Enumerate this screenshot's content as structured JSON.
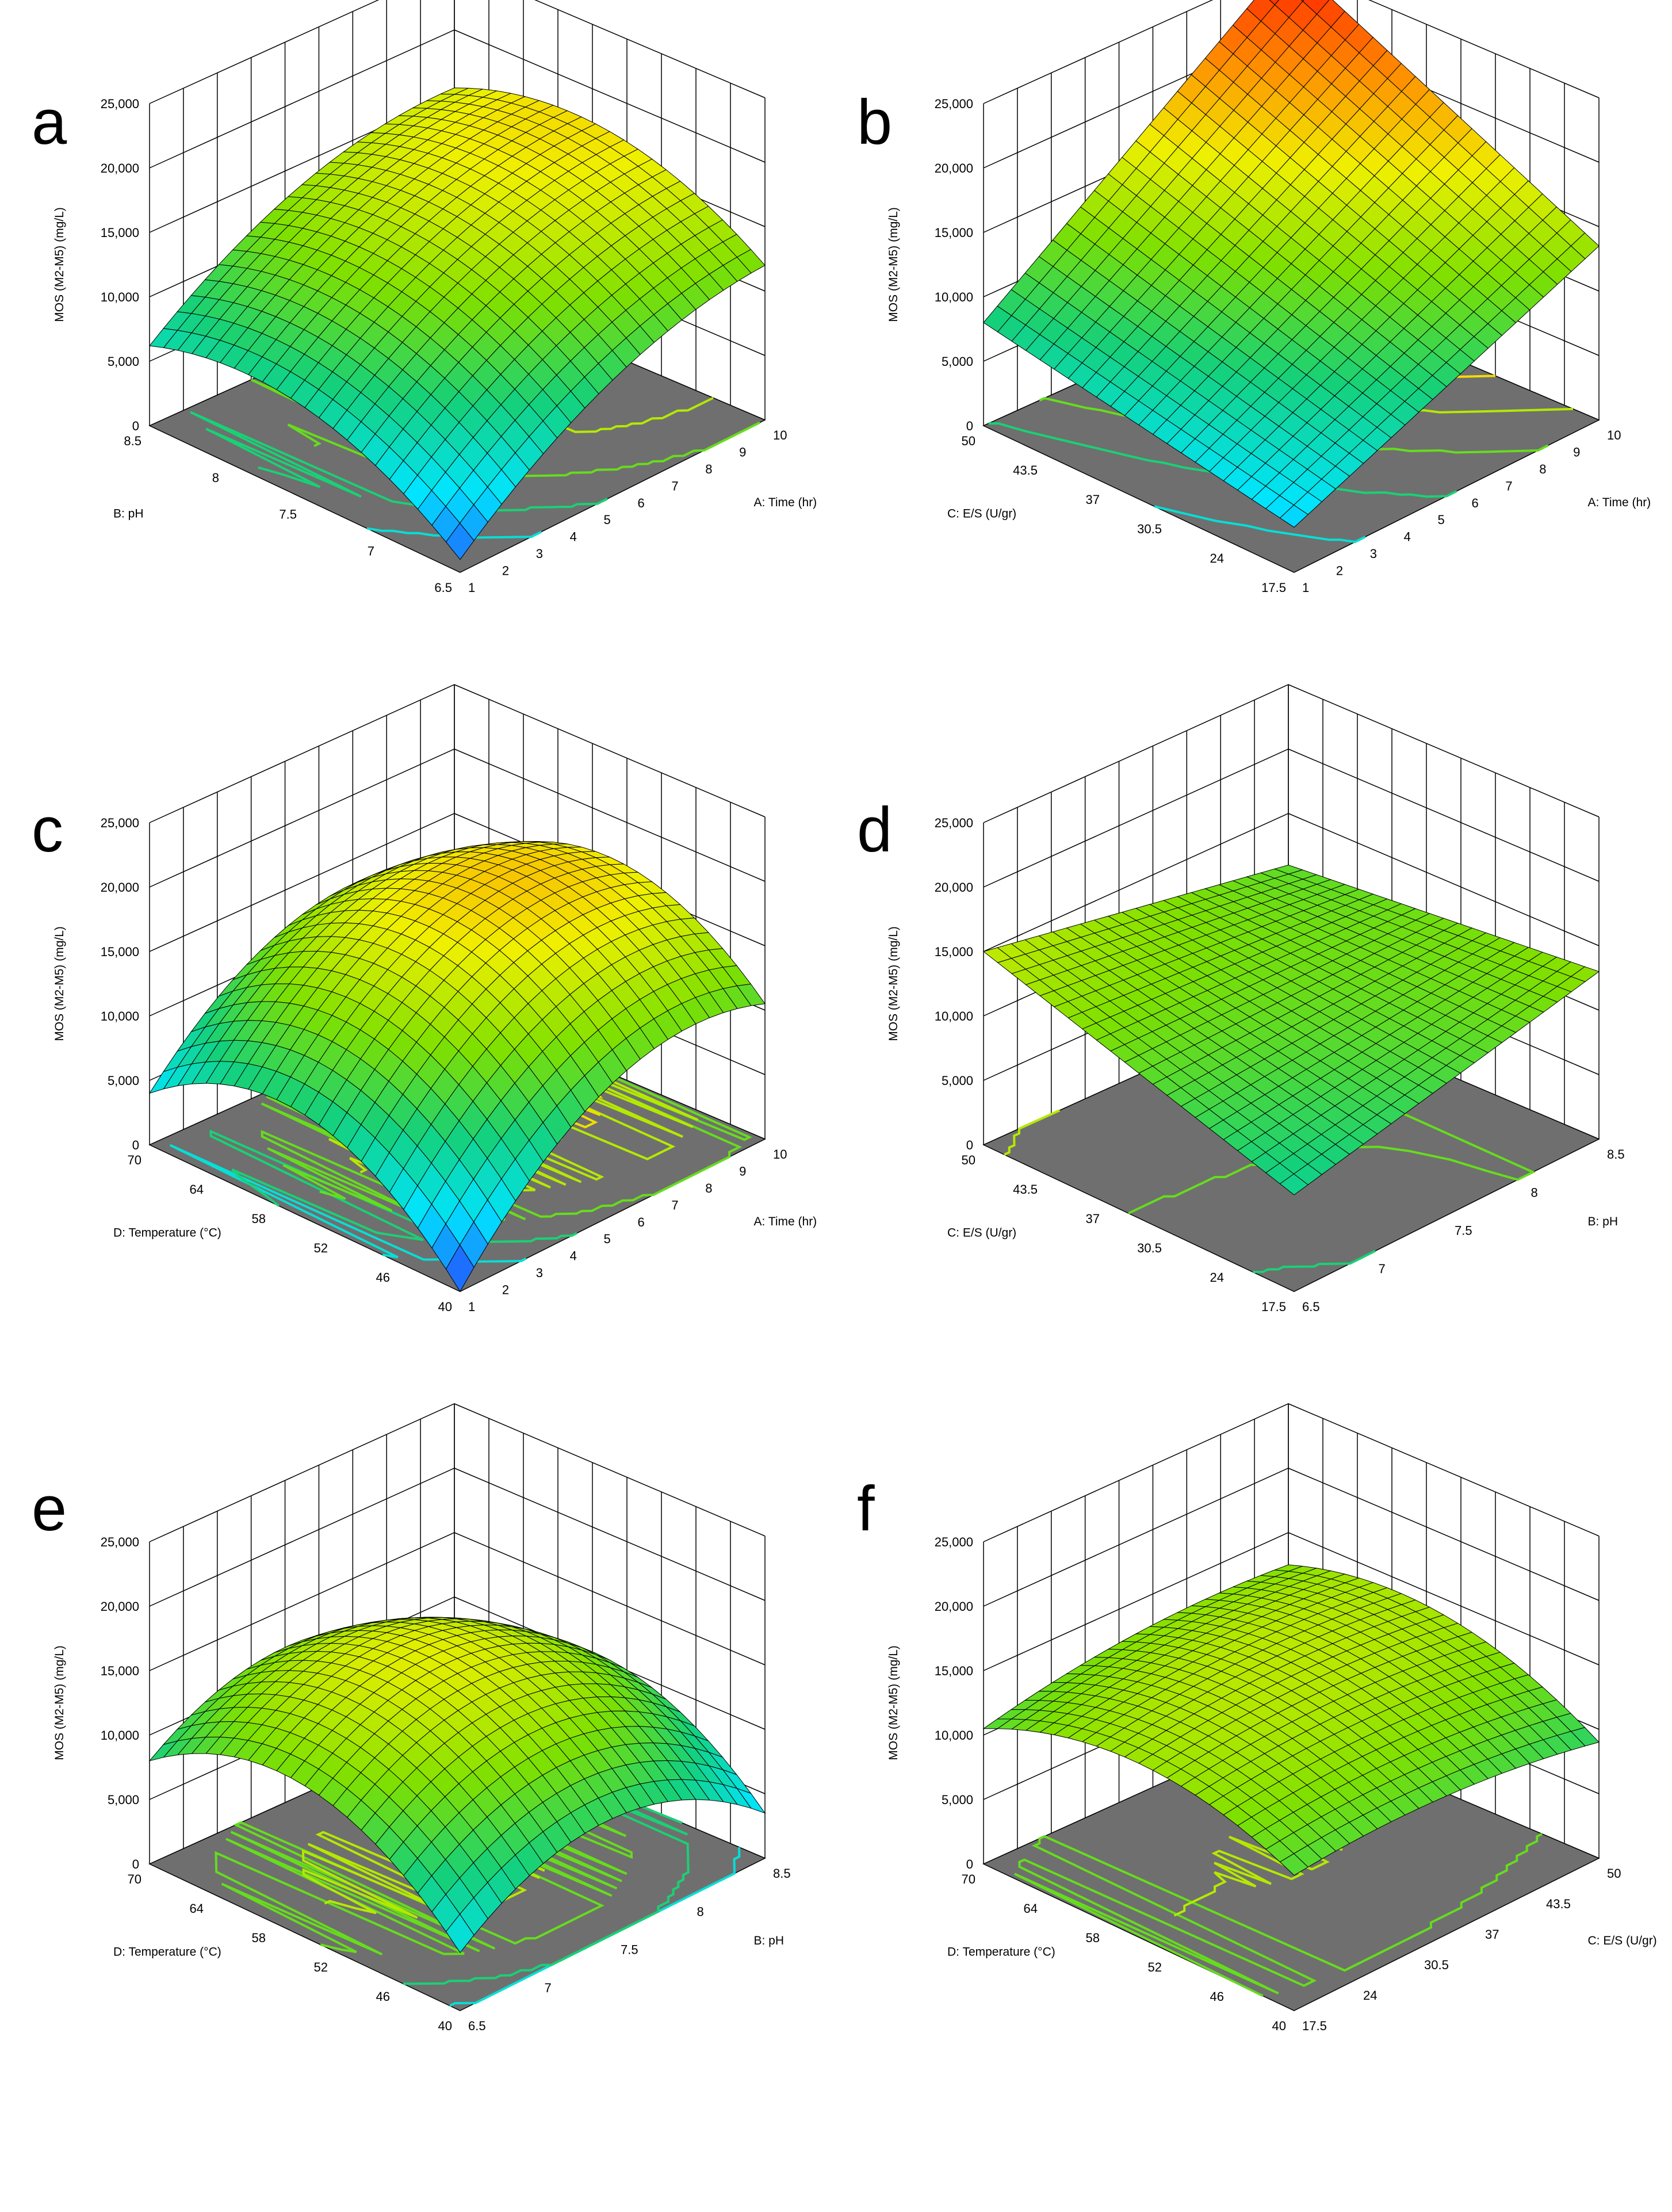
{
  "figure": {
    "panel_letters": [
      "a",
      "b",
      "c",
      "d",
      "e",
      "f"
    ]
  },
  "colors": {
    "floor": "#6f6f6f",
    "grid": "#000000",
    "colormap": [
      "#2a3cff",
      "#00e5ff",
      "#15d07a",
      "#7fe000",
      "#f0f000",
      "#ff8a00",
      "#ff1d00"
    ]
  },
  "chart_data": [
    {
      "panel": "a",
      "type": "surface",
      "zlabel": "MOS (M2-M5) (mg/L)",
      "zticks": [
        "0",
        "5,000",
        "10,000",
        "15,000",
        "20,000",
        "25,000"
      ],
      "zlim": [
        0,
        25000
      ],
      "xlabel": "A: Time (hr)",
      "xticks": [
        "1",
        "2",
        "3",
        "4",
        "5",
        "6",
        "7",
        "8",
        "9",
        "10"
      ],
      "xlim": [
        1,
        10
      ],
      "ylabel": "B: pH",
      "yticks": [
        "6.5",
        "7",
        "7.5",
        "8",
        "8.5"
      ],
      "ylim": [
        6.5,
        8.5
      ],
      "corners_z": {
        "x_min_y_min": 1000,
        "x_max_y_min": 12000,
        "x_min_y_max": 6200,
        "x_max_y_max": 15500
      },
      "curvature_x": -2500,
      "curvature_y": -3500
    },
    {
      "panel": "b",
      "type": "surface",
      "zlabel": "MOS (M2-M5) (mg/L)",
      "zticks": [
        "0",
        "5,000",
        "10,000",
        "15,000",
        "20,000",
        "25,000"
      ],
      "zlim": [
        0,
        25000
      ],
      "xlabel": "A: Time (hr)",
      "xticks": [
        "1",
        "2",
        "3",
        "4",
        "5",
        "6",
        "7",
        "8",
        "9",
        "10"
      ],
      "xlim": [
        1,
        10
      ],
      "ylabel": "C: E/S (U/gr)",
      "yticks": [
        "17.5",
        "24",
        "30.5",
        "37",
        "43.5",
        "50"
      ],
      "ylim": [
        17.5,
        50
      ],
      "corners_z": {
        "x_min_y_min": 3500,
        "x_max_y_min": 13500,
        "x_min_y_max": 8000,
        "x_max_y_max": 25500
      },
      "curvature_x": 0,
      "curvature_y": 0
    },
    {
      "panel": "c",
      "type": "surface",
      "zlabel": "MOS (M2-M5) (mg/L)",
      "zticks": [
        "0",
        "5,000",
        "10,000",
        "15,000",
        "20,000",
        "25,000"
      ],
      "zlim": [
        0,
        25000
      ],
      "xlabel": "A: Time (hr)",
      "xticks": [
        "1",
        "2",
        "3",
        "4",
        "5",
        "6",
        "7",
        "8",
        "9",
        "10"
      ],
      "xlim": [
        1,
        10
      ],
      "ylabel": "D: Temperature (°C)",
      "yticks": [
        "40",
        "46",
        "52",
        "58",
        "64",
        "70"
      ],
      "ylim": [
        40,
        70
      ],
      "corners_z": {
        "x_min_y_min": 0,
        "x_max_y_min": 10500,
        "x_min_y_max": 4000,
        "x_max_y_max": 11000
      },
      "curvature_x": -5000,
      "curvature_y": -6000
    },
    {
      "panel": "d",
      "type": "surface",
      "zlabel": "MOS (M2-M5) (mg/L)",
      "zticks": [
        "0",
        "5,000",
        "10,000",
        "15,000",
        "20,000",
        "25,000"
      ],
      "zlim": [
        0,
        25000
      ],
      "xlabel": "B: pH",
      "xticks": [
        "6.5",
        "7",
        "7.5",
        "8",
        "8.5"
      ],
      "xlim": [
        6.5,
        8.5
      ],
      "ylabel": "C: E/S (U/gr)",
      "yticks": [
        "17.5",
        "24",
        "30.5",
        "37",
        "43.5",
        "50"
      ],
      "ylim": [
        17.5,
        50
      ],
      "corners_z": {
        "x_min_y_min": 7500,
        "x_max_y_min": 13000,
        "x_min_y_max": 15000,
        "x_max_y_max": 11000
      },
      "curvature_x": 0,
      "curvature_y": 0
    },
    {
      "panel": "e",
      "type": "surface",
      "zlabel": "MOS (M2-M5) (mg/L)",
      "zticks": [
        "0",
        "5,000",
        "10,000",
        "15,000",
        "20,000",
        "25,000"
      ],
      "zlim": [
        0,
        25000
      ],
      "xlabel": "B: pH",
      "xticks": [
        "6.5",
        "7",
        "7.5",
        "8",
        "8.5"
      ],
      "xlim": [
        6.5,
        8.5
      ],
      "ylabel": "D: Temperature (°C)",
      "yticks": [
        "40",
        "46",
        "52",
        "58",
        "64",
        "70"
      ],
      "ylim": [
        40,
        70
      ],
      "corners_z": {
        "x_min_y_min": 4500,
        "x_max_y_min": 3500,
        "x_min_y_max": 8000,
        "x_max_y_max": 6000
      },
      "curvature_x": -5000,
      "curvature_y": -5500
    },
    {
      "panel": "f",
      "type": "surface",
      "zlabel": "MOS (M2-M5) (mg/L)",
      "zticks": [
        "0",
        "5,000",
        "10,000",
        "15,000",
        "20,000",
        "25,000"
      ],
      "zlim": [
        0,
        25000
      ],
      "xlabel": "C: E/S (U/gr)",
      "xticks": [
        "17.5",
        "24",
        "30.5",
        "37",
        "43.5",
        "50"
      ],
      "xlim": [
        17.5,
        50
      ],
      "ylabel": "D: Temperature (°C)",
      "yticks": [
        "40",
        "46",
        "52",
        "58",
        "64",
        "70"
      ],
      "ylim": [
        40,
        70
      ],
      "corners_z": {
        "x_min_y_min": 10500,
        "x_max_y_min": 9000,
        "x_min_y_max": 10500,
        "x_max_y_max": 12500
      },
      "curvature_x": -1000,
      "curvature_y": -3000
    }
  ]
}
